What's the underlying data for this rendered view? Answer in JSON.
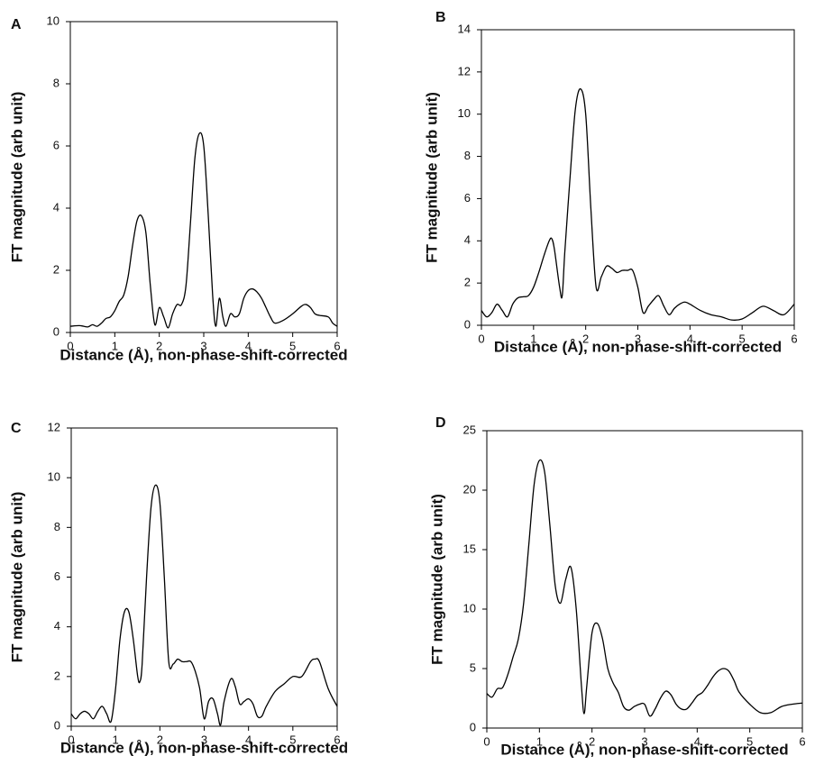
{
  "chart_data": [
    {
      "type": "line",
      "panel_label": "A",
      "x_label": "Distance (Å), non-phase-shift-corrected",
      "y_label": "FT magnitude (arb unit)",
      "xlim": [
        0,
        6
      ],
      "xticks": [
        0,
        1,
        2,
        3,
        4,
        5,
        6
      ],
      "ylim": [
        0,
        10
      ],
      "yticks": [
        0,
        2,
        4,
        6,
        8,
        10
      ],
      "series": [
        {
          "color": "#000000",
          "x": [
            0,
            0.2,
            0.3,
            0.4,
            0.5,
            0.6,
            0.7,
            0.8,
            0.9,
            1.0,
            1.1,
            1.2,
            1.3,
            1.4,
            1.5,
            1.6,
            1.7,
            1.8,
            1.9,
            2.0,
            2.1,
            2.2,
            2.3,
            2.4,
            2.5,
            2.6,
            2.7,
            2.8,
            2.9,
            3.0,
            3.1,
            3.2,
            3.27,
            3.35,
            3.43,
            3.5,
            3.6,
            3.7,
            3.8,
            3.9,
            4.0,
            4.1,
            4.2,
            4.3,
            4.4,
            4.5,
            4.6,
            4.8,
            5.0,
            5.2,
            5.3,
            5.4,
            5.5,
            5.6,
            5.8,
            5.9,
            6.0
          ],
          "values": [
            0.2,
            0.22,
            0.2,
            0.18,
            0.25,
            0.2,
            0.3,
            0.45,
            0.5,
            0.7,
            1.0,
            1.2,
            1.8,
            2.8,
            3.6,
            3.75,
            3.2,
            1.5,
            0.25,
            0.8,
            0.5,
            0.15,
            0.6,
            0.9,
            0.9,
            1.5,
            3.5,
            5.6,
            6.4,
            6.0,
            3.8,
            1.2,
            0.2,
            1.1,
            0.5,
            0.2,
            0.6,
            0.5,
            0.6,
            1.1,
            1.35,
            1.4,
            1.3,
            1.1,
            0.8,
            0.5,
            0.3,
            0.4,
            0.6,
            0.85,
            0.9,
            0.8,
            0.6,
            0.55,
            0.5,
            0.3,
            0.2
          ]
        }
      ]
    },
    {
      "type": "line",
      "panel_label": "B",
      "x_label": "Distance (Å), non-phase-shift-corrected",
      "y_label": "FT magnitude (arb unit)",
      "xlim": [
        0,
        6
      ],
      "xticks": [
        0,
        1,
        2,
        3,
        4,
        5,
        6
      ],
      "ylim": [
        0,
        14
      ],
      "yticks": [
        0,
        2,
        4,
        6,
        8,
        10,
        12,
        14
      ],
      "series": [
        {
          "color": "#000000",
          "x": [
            0,
            0.1,
            0.2,
            0.3,
            0.4,
            0.5,
            0.6,
            0.7,
            0.8,
            0.9,
            1.0,
            1.1,
            1.2,
            1.3,
            1.35,
            1.4,
            1.5,
            1.55,
            1.6,
            1.7,
            1.8,
            1.9,
            2.0,
            2.1,
            2.2,
            2.3,
            2.4,
            2.5,
            2.6,
            2.7,
            2.8,
            2.9,
            3.0,
            3.1,
            3.2,
            3.3,
            3.4,
            3.5,
            3.6,
            3.7,
            3.8,
            3.9,
            4.0,
            4.2,
            4.4,
            4.6,
            4.8,
            5.0,
            5.2,
            5.4,
            5.6,
            5.8,
            6.0
          ],
          "values": [
            0.7,
            0.4,
            0.6,
            1.0,
            0.7,
            0.4,
            1.0,
            1.3,
            1.35,
            1.4,
            1.8,
            2.5,
            3.3,
            4.0,
            4.1,
            3.6,
            1.8,
            1.4,
            3.5,
            7.0,
            10.2,
            11.2,
            10.0,
            5.5,
            1.8,
            2.3,
            2.8,
            2.7,
            2.5,
            2.6,
            2.6,
            2.6,
            1.8,
            0.6,
            0.9,
            1.2,
            1.4,
            0.9,
            0.5,
            0.8,
            1.0,
            1.1,
            1.0,
            0.7,
            0.5,
            0.4,
            0.25,
            0.3,
            0.6,
            0.9,
            0.7,
            0.5,
            1.0
          ]
        }
      ]
    },
    {
      "type": "line",
      "panel_label": "C",
      "x_label": "Distance (Å), non-phase-shift-corrected",
      "y_label": "FT magnitude (arb unit)",
      "xlim": [
        0,
        6
      ],
      "xticks": [
        0,
        1,
        2,
        3,
        4,
        5,
        6
      ],
      "ylim": [
        0,
        12
      ],
      "yticks": [
        0,
        2,
        4,
        6,
        8,
        10,
        12
      ],
      "series": [
        {
          "color": "#000000",
          "x": [
            0,
            0.1,
            0.2,
            0.3,
            0.4,
            0.5,
            0.6,
            0.7,
            0.8,
            0.9,
            1.0,
            1.1,
            1.2,
            1.3,
            1.4,
            1.5,
            1.55,
            1.6,
            1.7,
            1.8,
            1.9,
            2.0,
            2.1,
            2.2,
            2.3,
            2.4,
            2.5,
            2.6,
            2.7,
            2.8,
            2.9,
            3.0,
            3.1,
            3.2,
            3.3,
            3.37,
            3.45,
            3.6,
            3.7,
            3.8,
            3.9,
            4.0,
            4.1,
            4.2,
            4.3,
            4.4,
            4.6,
            4.8,
            5.0,
            5.2,
            5.4,
            5.5,
            5.6,
            5.8,
            6.0
          ],
          "values": [
            0.5,
            0.3,
            0.5,
            0.6,
            0.5,
            0.3,
            0.6,
            0.8,
            0.5,
            0.2,
            1.5,
            3.5,
            4.6,
            4.6,
            3.5,
            2.0,
            1.8,
            2.5,
            6.0,
            8.8,
            9.7,
            9.0,
            6.0,
            2.6,
            2.5,
            2.7,
            2.6,
            2.6,
            2.6,
            2.2,
            1.5,
            0.3,
            1.0,
            1.1,
            0.5,
            0.05,
            1.0,
            1.9,
            1.6,
            0.9,
            1.0,
            1.1,
            0.9,
            0.4,
            0.4,
            0.8,
            1.4,
            1.7,
            2.0,
            2.0,
            2.6,
            2.7,
            2.6,
            1.5,
            0.8
          ]
        }
      ]
    },
    {
      "type": "line",
      "panel_label": "D",
      "x_label": "Distance (Å), non-phase-shift-corrected",
      "y_label": "FT magnitude (arb unit)",
      "xlim": [
        0,
        6
      ],
      "xticks": [
        0,
        1,
        2,
        3,
        4,
        5,
        6
      ],
      "ylim": [
        0,
        25
      ],
      "yticks": [
        0,
        5,
        10,
        15,
        20,
        25
      ],
      "series": [
        {
          "color": "#000000",
          "x": [
            0,
            0.1,
            0.2,
            0.3,
            0.4,
            0.5,
            0.6,
            0.7,
            0.8,
            0.9,
            1.0,
            1.1,
            1.2,
            1.3,
            1.4,
            1.5,
            1.6,
            1.7,
            1.8,
            1.85,
            1.9,
            2.0,
            2.1,
            2.2,
            2.3,
            2.4,
            2.5,
            2.6,
            2.7,
            2.8,
            2.9,
            3.0,
            3.1,
            3.2,
            3.3,
            3.4,
            3.5,
            3.6,
            3.7,
            3.8,
            3.9,
            4.0,
            4.1,
            4.2,
            4.3,
            4.4,
            4.5,
            4.6,
            4.7,
            4.8,
            5.0,
            5.2,
            5.4,
            5.6,
            5.8,
            6.0
          ],
          "values": [
            2.9,
            2.6,
            3.3,
            3.4,
            4.5,
            6.0,
            7.5,
            10.5,
            15.5,
            20.5,
            22.5,
            21.5,
            17.0,
            12.0,
            10.5,
            12.5,
            13.5,
            10.0,
            3.5,
            1.2,
            3.5,
            8.0,
            8.8,
            7.5,
            5.0,
            3.8,
            3.0,
            1.8,
            1.5,
            1.8,
            2.0,
            2.0,
            1.0,
            1.6,
            2.5,
            3.1,
            2.8,
            2.0,
            1.6,
            1.6,
            2.1,
            2.7,
            3.0,
            3.6,
            4.3,
            4.8,
            5.0,
            4.8,
            4.0,
            3.0,
            2.0,
            1.3,
            1.3,
            1.8,
            2.0,
            2.1
          ]
        }
      ]
    }
  ]
}
